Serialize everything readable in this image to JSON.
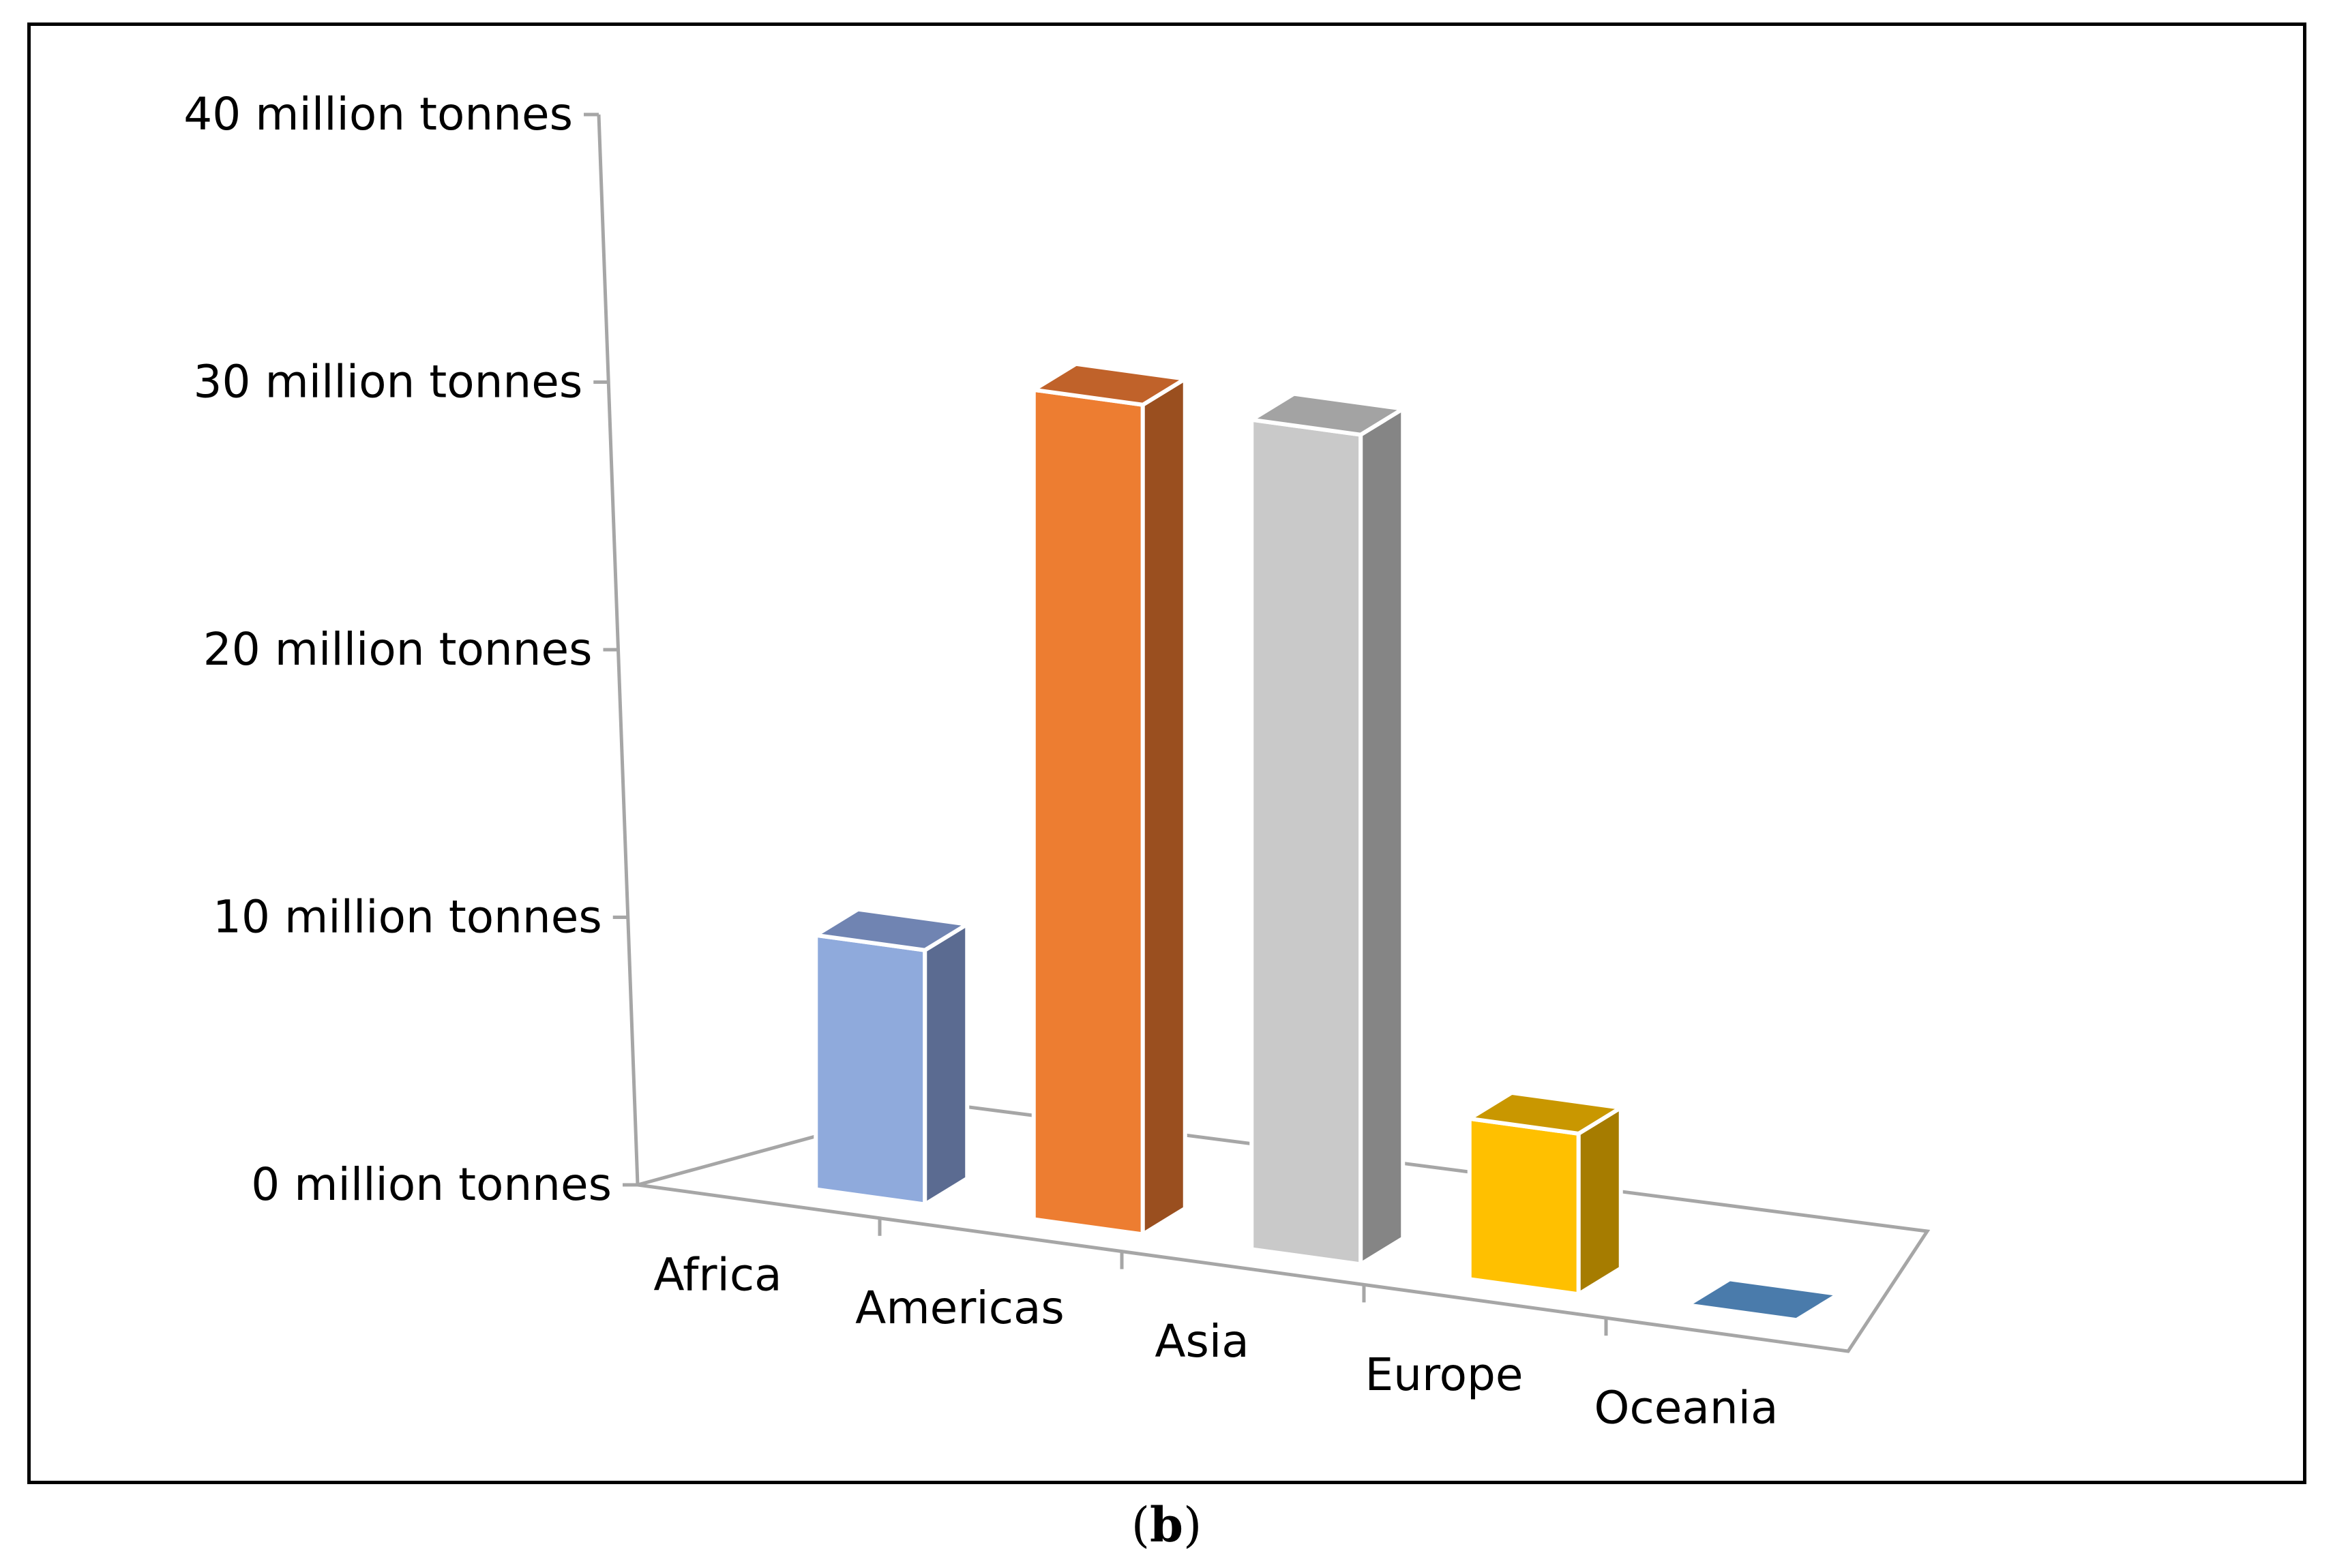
{
  "chart_data": {
    "type": "bar",
    "style": "3d",
    "categories": [
      "Africa",
      "Americas",
      "Asia",
      "Europe",
      "Oceania"
    ],
    "values": [
      9.5,
      31.0,
      31.0,
      6.0,
      0.1
    ],
    "unit": "million tonnes",
    "ylim": [
      0,
      40
    ],
    "yticks": [
      0,
      10,
      20,
      30,
      40
    ],
    "ytick_labels": [
      "0 million tonnes",
      "10 million tonnes",
      "20 million tonnes",
      "30 million tonnes",
      "40 million tonnes"
    ],
    "title": "",
    "xlabel": "",
    "ylabel": "",
    "grid": false,
    "legend": "none",
    "colors": [
      {
        "front": "#8faadc",
        "side": "#5b6b91",
        "top": "#7084b2"
      },
      {
        "front": "#ed7d31",
        "side": "#9a4f1f",
        "top": "#c0622a"
      },
      {
        "front": "#c9c9c9",
        "side": "#858585",
        "top": "#a3a3a3"
      },
      {
        "front": "#ffc000",
        "side": "#a67c00",
        "top": "#c99700"
      },
      {
        "front": "#4a7bab",
        "side": "#2f4f70",
        "top": "#4a7bab"
      }
    ]
  },
  "caption": {
    "open": "(",
    "label": "b",
    "close": ")"
  }
}
